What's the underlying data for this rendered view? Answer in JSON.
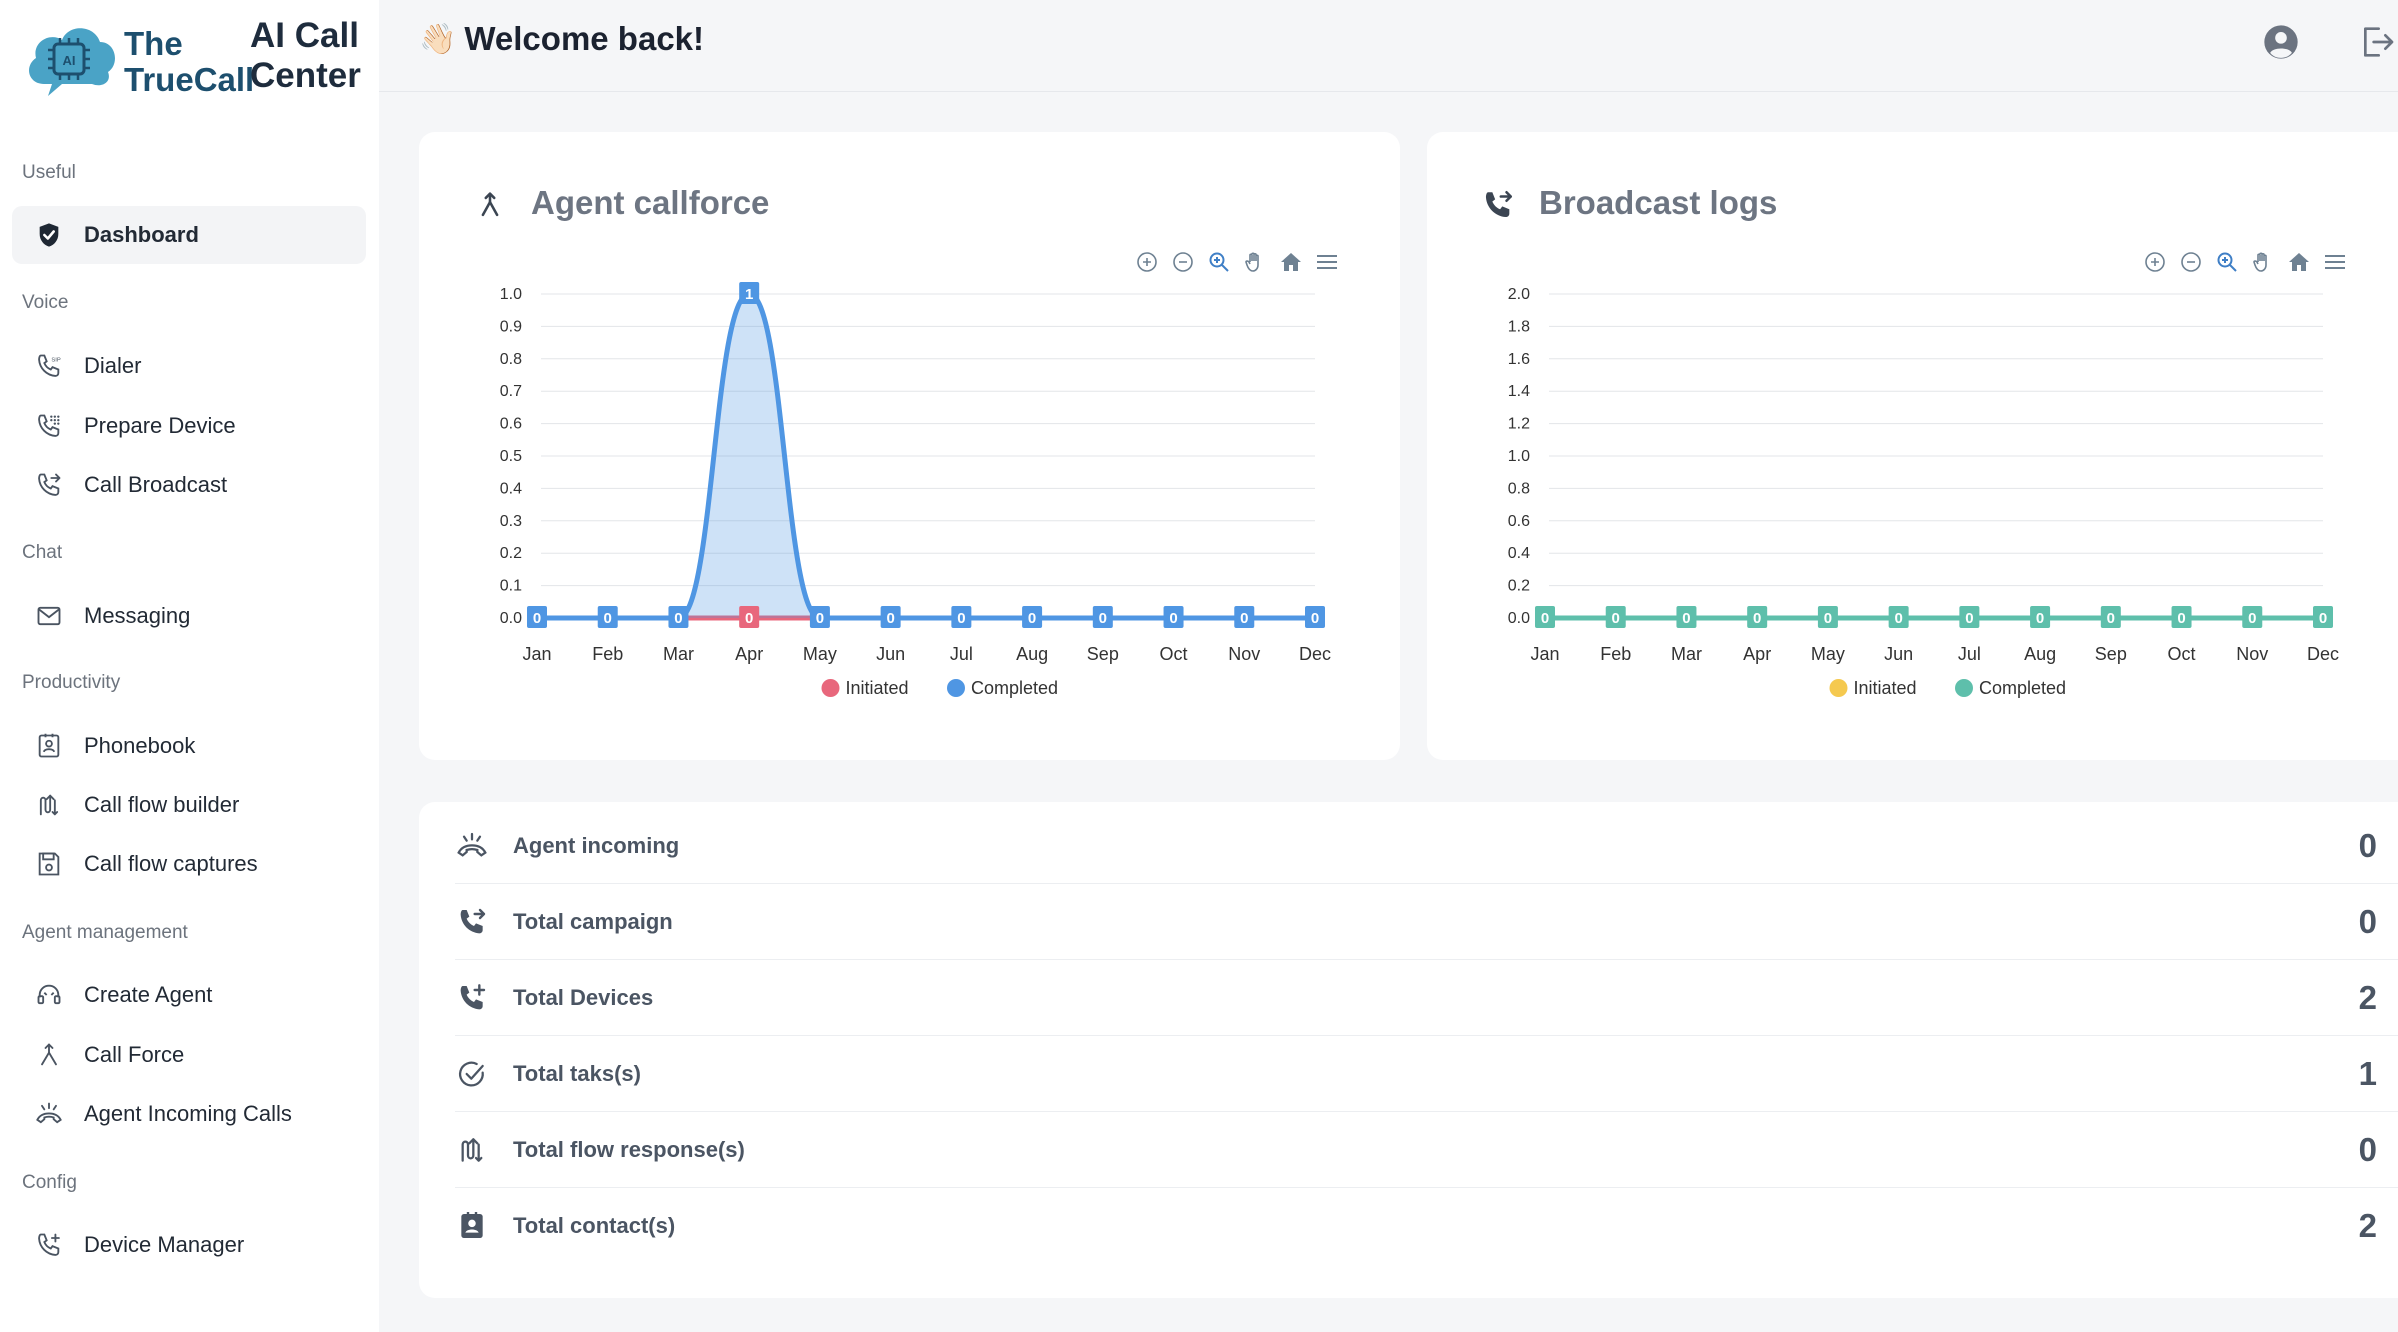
{
  "app": {
    "brand_line1": "The",
    "brand_line2": "TrueCall",
    "product_line1": "AI Call",
    "product_line2": "Center",
    "logo_badge": "AI"
  },
  "header": {
    "wave_emoji": "👋🏻",
    "welcome": "Welcome back!",
    "profile_icon": "user-circle-icon",
    "logout_icon": "logout-icon"
  },
  "sidebar": {
    "sections": [
      {
        "label": "Useful",
        "items": [
          {
            "label": "Dashboard",
            "icon": "shield-check-icon",
            "active": true
          }
        ]
      },
      {
        "label": "Voice",
        "items": [
          {
            "label": "Dialer",
            "icon": "sip-phone-icon"
          },
          {
            "label": "Prepare Device",
            "icon": "phone-keypad-icon"
          },
          {
            "label": "Call Broadcast",
            "icon": "phone-forward-icon"
          }
        ]
      },
      {
        "label": "Chat",
        "items": [
          {
            "label": "Messaging",
            "icon": "envelope-icon"
          }
        ]
      },
      {
        "label": "Productivity",
        "items": [
          {
            "label": "Phonebook",
            "icon": "contact-book-icon"
          },
          {
            "label": "Call flow builder",
            "icon": "flow-arrows-icon"
          },
          {
            "label": "Call flow captures",
            "icon": "floppy-disk-icon"
          }
        ]
      },
      {
        "label": "Agent management",
        "items": [
          {
            "label": "Create Agent",
            "icon": "headset-agent-icon"
          },
          {
            "label": "Call Force",
            "icon": "merge-arrow-icon"
          },
          {
            "label": "Agent Incoming Calls",
            "icon": "incoming-call-icon"
          }
        ]
      },
      {
        "label": "Config",
        "items": [
          {
            "label": "Device Manager",
            "icon": "phone-plus-icon"
          }
        ]
      }
    ]
  },
  "cards": {
    "callforce": {
      "title": "Agent callforce",
      "icon": "merge-arrow-icon"
    },
    "broadcast": {
      "title": "Broadcast logs",
      "icon": "phone-forward-icon"
    }
  },
  "toolbar_icons": [
    "zoom-in-icon",
    "zoom-out-icon",
    "magnifier-icon",
    "pan-hand-icon",
    "home-icon",
    "menu-icon"
  ],
  "chart_data": [
    {
      "type": "area",
      "title": "Agent callforce",
      "categories": [
        "Jan",
        "Feb",
        "Mar",
        "Apr",
        "May",
        "Jun",
        "Jul",
        "Aug",
        "Sep",
        "Oct",
        "Nov",
        "Dec"
      ],
      "ylim": [
        0,
        1.0
      ],
      "yticks": [
        "0.0",
        "0.1",
        "0.2",
        "0.3",
        "0.4",
        "0.5",
        "0.6",
        "0.7",
        "0.8",
        "0.9",
        "1.0"
      ],
      "grid": true,
      "legend_position": "bottom",
      "series": [
        {
          "name": "Initiated",
          "color": "#e8677c",
          "values": [
            0,
            0,
            0,
            0,
            0,
            0,
            0,
            0,
            0,
            0,
            0,
            0
          ]
        },
        {
          "name": "Completed",
          "color": "#4f96e3",
          "values": [
            0,
            0,
            0,
            1,
            0,
            0,
            0,
            0,
            0,
            0,
            0,
            0
          ]
        }
      ]
    },
    {
      "type": "line",
      "title": "Broadcast logs",
      "categories": [
        "Jan",
        "Feb",
        "Mar",
        "Apr",
        "May",
        "Jun",
        "Jul",
        "Aug",
        "Sep",
        "Oct",
        "Nov",
        "Dec"
      ],
      "ylim": [
        0,
        2.0
      ],
      "yticks": [
        "0.0",
        "0.2",
        "0.4",
        "0.6",
        "0.8",
        "1.0",
        "1.2",
        "1.4",
        "1.6",
        "1.8",
        "2.0"
      ],
      "grid": true,
      "legend_position": "bottom",
      "series": [
        {
          "name": "Initiated",
          "color": "#f5c94f",
          "values": [
            0,
            0,
            0,
            0,
            0,
            0,
            0,
            0,
            0,
            0,
            0,
            0
          ]
        },
        {
          "name": "Completed",
          "color": "#5ebfab",
          "values": [
            0,
            0,
            0,
            0,
            0,
            0,
            0,
            0,
            0,
            0,
            0,
            0
          ]
        }
      ]
    }
  ],
  "stats": [
    {
      "label": "Agent incoming",
      "value": "0",
      "icon": "incoming-call-icon"
    },
    {
      "label": "Total campaign",
      "value": "0",
      "icon": "phone-forward-icon"
    },
    {
      "label": "Total Devices",
      "value": "2",
      "icon": "phone-plus-icon"
    },
    {
      "label": "Total taks(s)",
      "value": "1",
      "icon": "check-circle-icon"
    },
    {
      "label": "Total flow response(s)",
      "value": "0",
      "icon": "flow-arrows-icon"
    },
    {
      "label": "Total contact(s)",
      "value": "2",
      "icon": "contact-card-icon"
    }
  ]
}
